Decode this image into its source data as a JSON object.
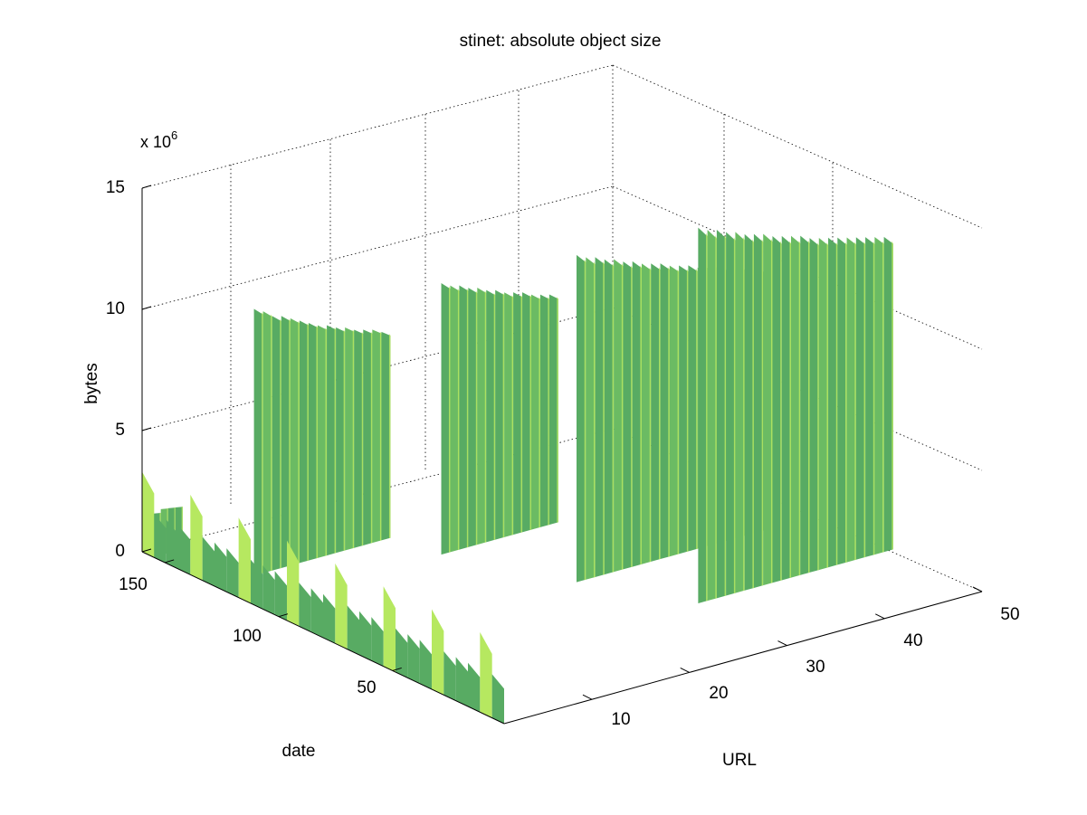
{
  "chart_data": {
    "type": "surface",
    "title": "stinet: absolute object size",
    "xlabel": "URL",
    "ylabel": "date",
    "zlabel": "bytes",
    "z_exponent_label": {
      "base": "x 10",
      "exp": "6"
    },
    "x_ticks": [
      10,
      20,
      30,
      40,
      50
    ],
    "y_ticks": [
      50,
      100,
      150
    ],
    "z_ticks": [
      0,
      5,
      10,
      15
    ],
    "xlim": [
      1,
      50
    ],
    "ylim": [
      1,
      160
    ],
    "zlim": [
      0,
      15000000
    ],
    "grid": true,
    "colors": {
      "surface_dark": "#58ab63",
      "surface_mid": "#6bbb63",
      "surface_light": "#b6e860",
      "grid": "#000000"
    },
    "series": [
      {
        "url_range": [
          1,
          4
        ],
        "values_bytes": [
          1800000,
          1900000,
          1850000,
          1800000
        ]
      },
      {
        "url_range": [
          5,
          19
        ],
        "values_bytes": [
          11000000,
          10800000,
          10500000,
          10400000,
          10200000,
          10000000,
          9800000,
          9600000,
          9500000,
          9300000,
          9200000,
          9000000,
          8900000,
          8800000,
          8600000
        ]
      },
      {
        "url_range": [
          20,
          32
        ],
        "values_bytes": [
          11200000,
          11000000,
          10900000,
          10700000,
          10600000,
          10400000,
          10300000,
          10100000,
          10000000,
          9900000,
          9700000,
          9600000,
          9500000
        ]
      },
      {
        "url_range": [
          25,
          46
        ],
        "values_bytes": [
          13500000,
          13300000,
          13200000,
          13000000,
          12900000,
          12700000,
          12600000,
          12400000,
          12300000,
          12200000,
          12000000,
          11900000,
          11800000,
          11600000,
          11500000,
          11400000,
          11200000,
          11100000,
          11000000,
          10900000,
          10700000,
          10600000
        ]
      },
      {
        "url_range": [
          30,
          50
        ],
        "values_bytes": [
          15500000,
          15300000,
          15200000,
          15000000,
          14900000,
          14700000,
          14600000,
          14500000,
          14300000,
          14200000,
          14100000,
          14000000,
          13800000,
          13700000,
          13600000,
          13500000,
          13400000,
          13300000,
          13200000,
          13100000,
          13000000
        ]
      }
    ]
  }
}
